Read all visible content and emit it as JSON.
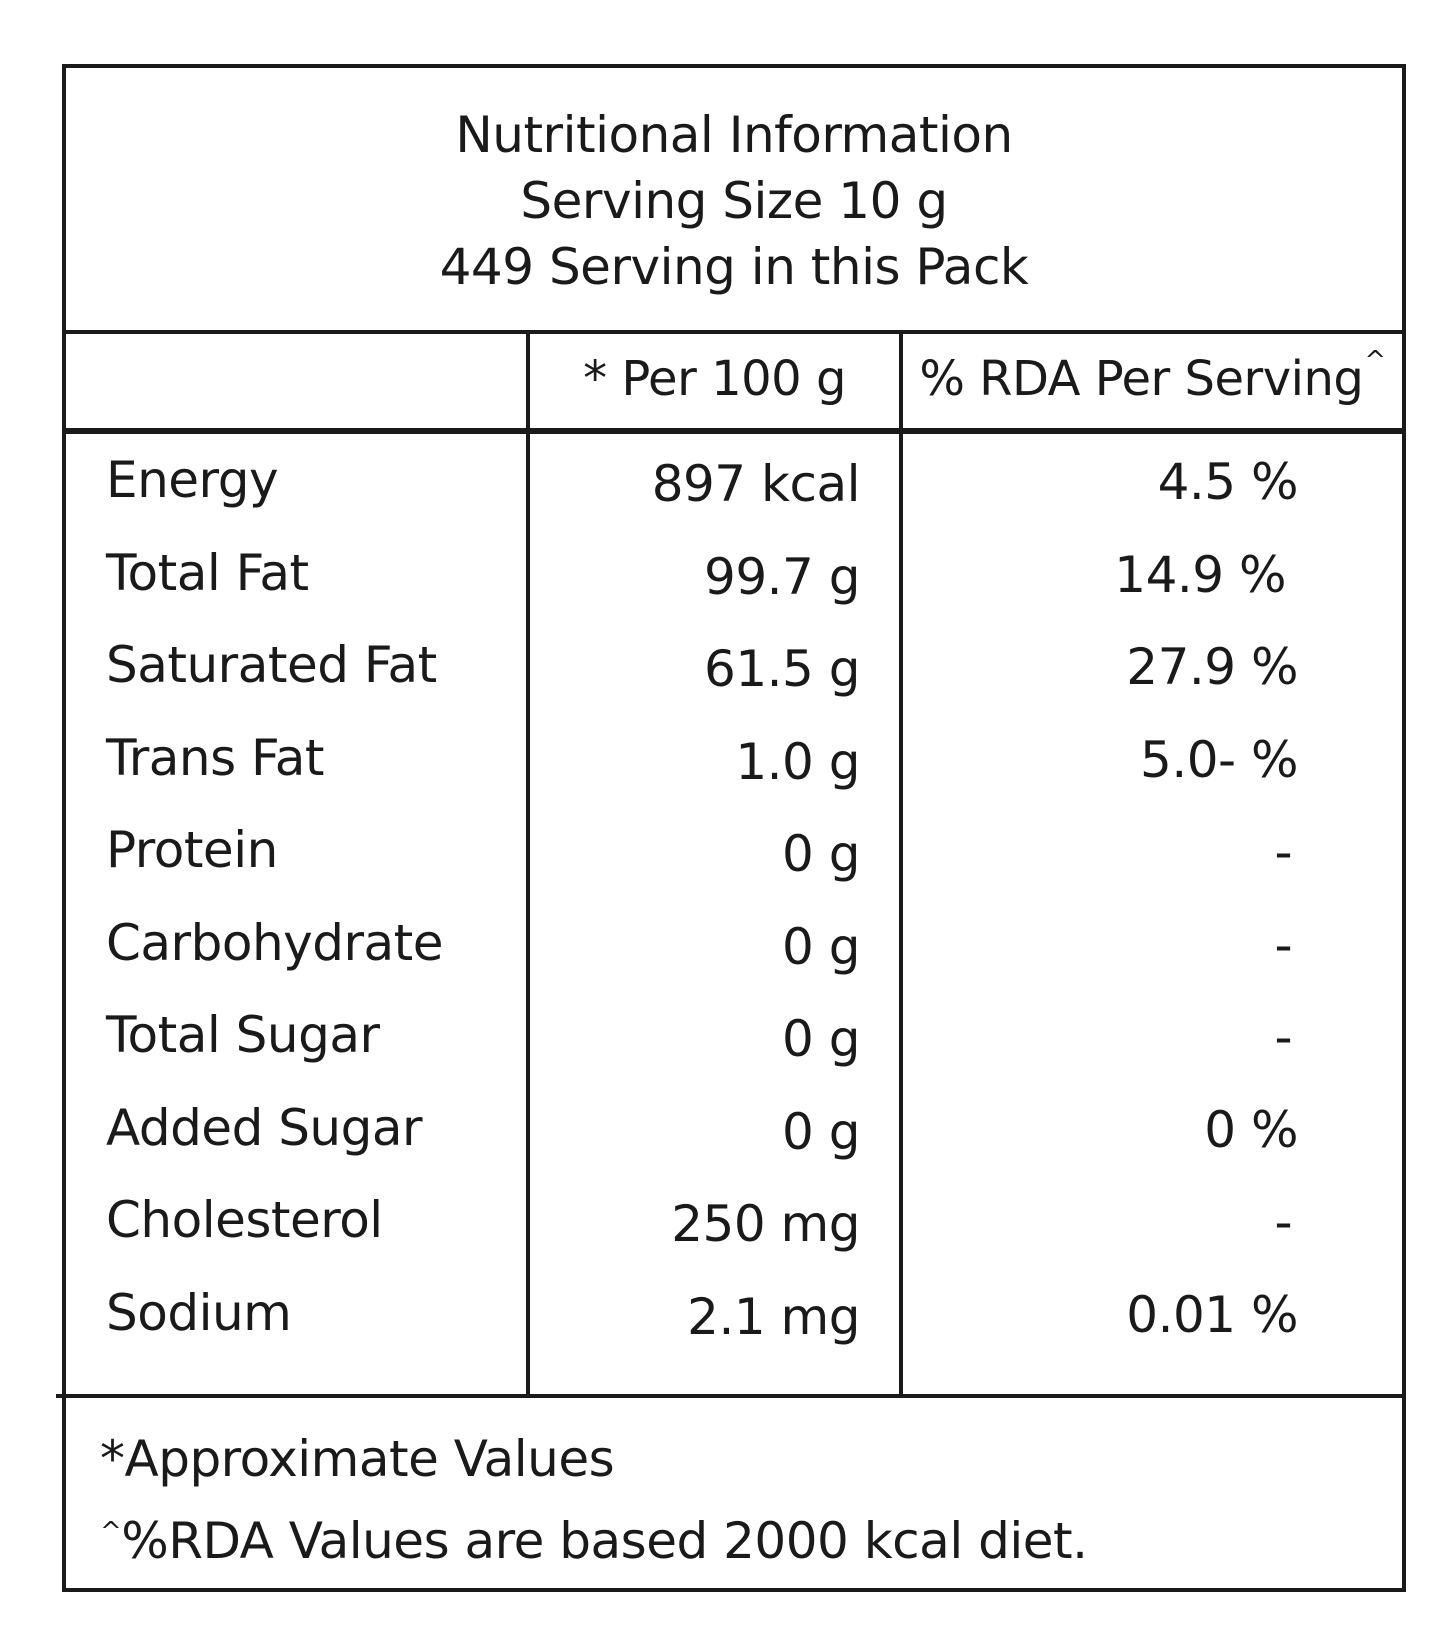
{
  "header": {
    "title": "Nutritional Information",
    "serving_size": "Serving Size 10 g",
    "servings_per_pack": "449 Serving in this Pack"
  },
  "columns": {
    "per_100g": "* Per 100 g",
    "rda_per_serving": "% RDA Per Serving",
    "rda_marker": "^"
  },
  "rows": [
    {
      "name": "Energy",
      "per_100g": "897 kcal",
      "rda": "4.5 %"
    },
    {
      "name": "Total Fat",
      "per_100g": "99.7 g",
      "rda": "14.9 %"
    },
    {
      "name": "Saturated Fat",
      "per_100g": "61.5 g",
      "rda": "27.9 %"
    },
    {
      "name": "Trans Fat",
      "per_100g": "1.0 g",
      "rda": "5.0- %"
    },
    {
      "name": "Protein",
      "per_100g": "0 g",
      "rda": "-"
    },
    {
      "name": "Carbohydrate",
      "per_100g": "0 g",
      "rda": "-"
    },
    {
      "name": "Total Sugar",
      "per_100g": "0 g",
      "rda": "-"
    },
    {
      "name": "Added Sugar",
      "per_100g": "0 g",
      "rda": "0 %"
    },
    {
      "name": "Cholesterol",
      "per_100g": "250 mg",
      "rda": "-"
    },
    {
      "name": "Sodium",
      "per_100g": "2.1 mg",
      "rda": "0.01 %"
    }
  ],
  "footnotes": {
    "approx": "*Approximate Values",
    "rda_marker": "^",
    "rda_note": "%RDA Values are based 2000 kcal diet."
  }
}
